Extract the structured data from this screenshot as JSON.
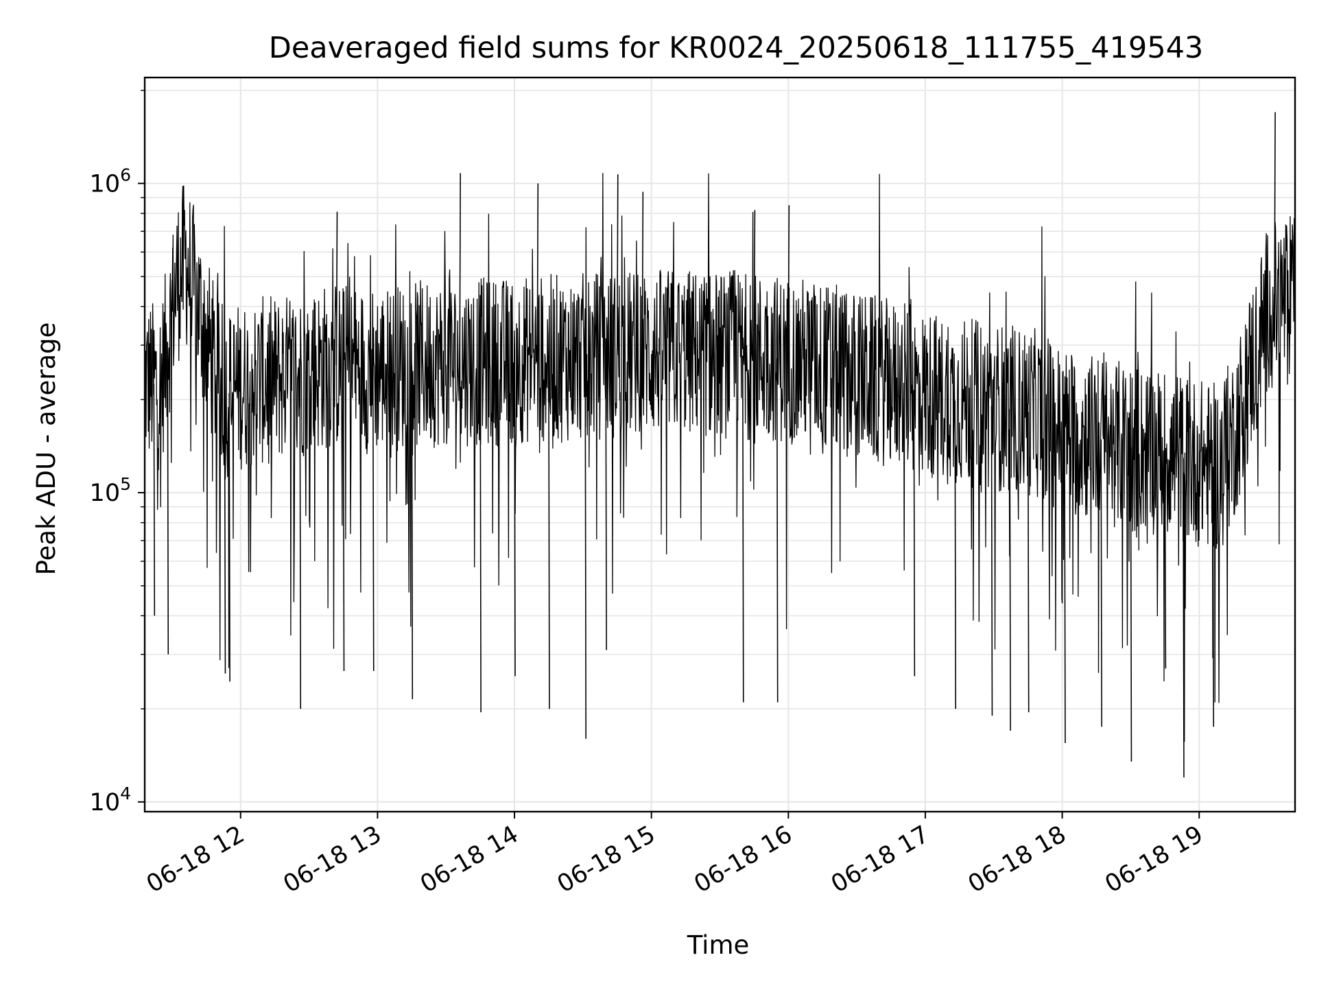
{
  "chart_data": {
    "type": "line",
    "title": "Deaveraged field sums for KR0024_20250618_111755_419543",
    "xlabel": "Time",
    "ylabel": "Peak ADU - average",
    "yscale": "log",
    "ylim": [
      9300,
      2200000
    ],
    "xlim": [
      "2025-06-18 11:18",
      "2025-06-18 19:42"
    ],
    "grid": true,
    "x_ticks": [
      {
        "value": "2025-06-18 12:00",
        "label": "06-18 12"
      },
      {
        "value": "2025-06-18 13:00",
        "label": "06-18 13"
      },
      {
        "value": "2025-06-18 14:00",
        "label": "06-18 14"
      },
      {
        "value": "2025-06-18 15:00",
        "label": "06-18 15"
      },
      {
        "value": "2025-06-18 16:00",
        "label": "06-18 16"
      },
      {
        "value": "2025-06-18 17:00",
        "label": "06-18 17"
      },
      {
        "value": "2025-06-18 18:00",
        "label": "06-18 18"
      },
      {
        "value": "2025-06-18 19:00",
        "label": "06-18 19"
      }
    ],
    "y_ticks": [
      {
        "value": 10000,
        "base": "10",
        "exp": "4"
      },
      {
        "value": 100000,
        "base": "10",
        "exp": "5"
      },
      {
        "value": 1000000,
        "base": "10",
        "exp": "6"
      }
    ],
    "series": [
      {
        "color": "#000000",
        "x": [
          "2025-06-18 11:18",
          "2025-06-18 11:25",
          "2025-06-18 11:32",
          "2025-06-18 11:36",
          "2025-06-18 11:40",
          "2025-06-18 11:46",
          "2025-06-18 11:52",
          "2025-06-18 11:58",
          "2025-06-18 12:10",
          "2025-06-18 12:25",
          "2025-06-18 12:40",
          "2025-06-18 12:55",
          "2025-06-18 13:10",
          "2025-06-18 13:30",
          "2025-06-18 13:50",
          "2025-06-18 14:10",
          "2025-06-18 14:30",
          "2025-06-18 14:50",
          "2025-06-18 15:10",
          "2025-06-18 15:30",
          "2025-06-18 15:50",
          "2025-06-18 16:10",
          "2025-06-18 16:30",
          "2025-06-18 16:50",
          "2025-06-18 17:10",
          "2025-06-18 17:30",
          "2025-06-18 17:50",
          "2025-06-18 18:00",
          "2025-06-18 18:15",
          "2025-06-18 18:30",
          "2025-06-18 18:45",
          "2025-06-18 19:00",
          "2025-06-18 19:08",
          "2025-06-18 19:15",
          "2025-06-18 19:22",
          "2025-06-18 19:30",
          "2025-06-18 19:36",
          "2025-06-18 19:42"
        ],
        "y": [
          230000,
          220000,
          480000,
          560000,
          440000,
          300000,
          200000,
          220000,
          230000,
          240000,
          260000,
          250000,
          255000,
          265000,
          265000,
          270000,
          275000,
          280000,
          285000,
          280000,
          275000,
          265000,
          240000,
          220000,
          200000,
          190000,
          180000,
          160000,
          150000,
          140000,
          135000,
          125000,
          120000,
          150000,
          240000,
          390000,
          420000,
          430000
        ],
        "spikes": [
          {
            "x": "2025-06-18 11:22",
            "y": 40000
          },
          {
            "x": "2025-06-18 11:28",
            "y": 30000
          },
          {
            "x": "2025-06-18 11:53",
            "y": 26000
          },
          {
            "x": "2025-06-18 11:55",
            "y": 24500
          },
          {
            "x": "2025-06-18 12:26",
            "y": 20000
          },
          {
            "x": "2025-06-18 12:45",
            "y": 26500
          },
          {
            "x": "2025-06-18 12:58",
            "y": 26500
          },
          {
            "x": "2025-06-18 13:15",
            "y": 21500
          },
          {
            "x": "2025-06-18 13:45",
            "y": 19500
          },
          {
            "x": "2025-06-18 14:00",
            "y": 25500
          },
          {
            "x": "2025-06-18 14:15",
            "y": 20000
          },
          {
            "x": "2025-06-18 14:31",
            "y": 16000
          },
          {
            "x": "2025-06-18 14:40",
            "y": 31000
          },
          {
            "x": "2025-06-18 15:40",
            "y": 21000
          },
          {
            "x": "2025-06-18 15:55",
            "y": 21000
          },
          {
            "x": "2025-06-18 16:55",
            "y": 25500
          },
          {
            "x": "2025-06-18 17:13",
            "y": 20000
          },
          {
            "x": "2025-06-18 17:29",
            "y": 19000
          },
          {
            "x": "2025-06-18 17:37",
            "y": 17000
          },
          {
            "x": "2025-06-18 17:45",
            "y": 19500
          },
          {
            "x": "2025-06-18 18:01",
            "y": 15500
          },
          {
            "x": "2025-06-18 18:17",
            "y": 17500
          },
          {
            "x": "2025-06-18 18:30",
            "y": 13500
          },
          {
            "x": "2025-06-18 18:45",
            "y": 27000
          },
          {
            "x": "2025-06-18 18:53",
            "y": 12000
          },
          {
            "x": "2025-06-18 19:06",
            "y": 17500
          },
          {
            "x": "2025-06-18 11:30",
            "y": 620000
          },
          {
            "x": "2025-06-18 12:42",
            "y": 810000
          },
          {
            "x": "2025-06-18 13:36",
            "y": 1080000
          },
          {
            "x": "2025-06-18 14:10",
            "y": 1000000
          },
          {
            "x": "2025-06-18 14:45",
            "y": 1070000
          },
          {
            "x": "2025-06-18 14:56",
            "y": 940000
          },
          {
            "x": "2025-06-18 15:45",
            "y": 820000
          },
          {
            "x": "2025-06-18 16:00",
            "y": 850000
          },
          {
            "x": "2025-06-18 19:33",
            "y": 1700000
          }
        ]
      }
    ]
  }
}
